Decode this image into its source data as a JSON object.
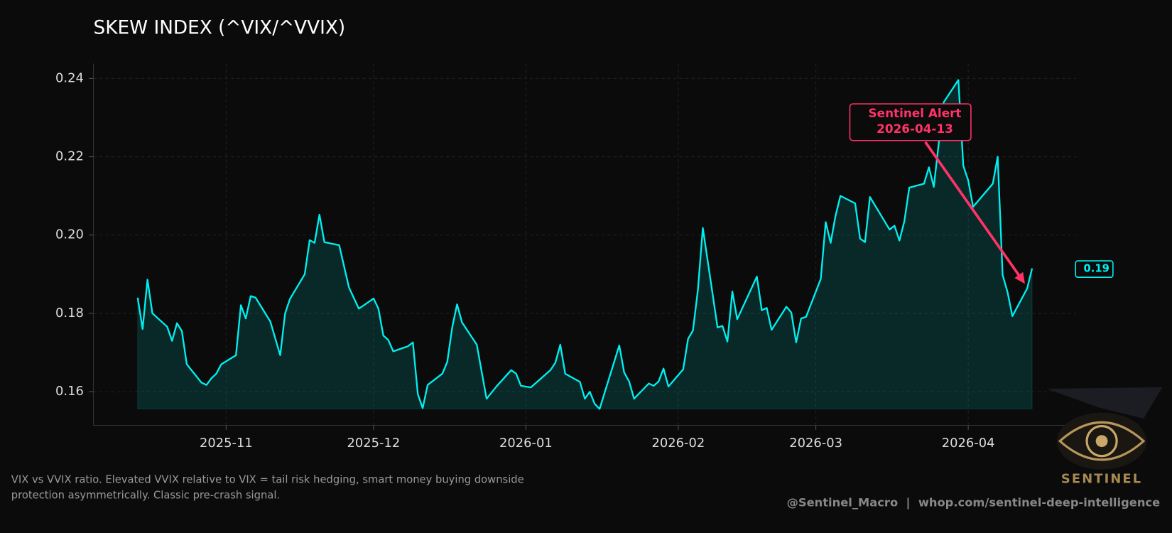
{
  "chart_data": {
    "type": "line",
    "title": "SKEW INDEX (^VIX/^VVIX)",
    "x": [
      "2025-10-14",
      "2025-10-15",
      "2025-10-16",
      "2025-10-17",
      "2025-10-20",
      "2025-10-21",
      "2025-10-22",
      "2025-10-23",
      "2025-10-24",
      "2025-10-27",
      "2025-10-28",
      "2025-10-29",
      "2025-10-30",
      "2025-10-31",
      "2025-11-03",
      "2025-11-04",
      "2025-11-05",
      "2025-11-06",
      "2025-11-07",
      "2025-11-10",
      "2025-11-12",
      "2025-11-13",
      "2025-11-14",
      "2025-11-17",
      "2025-11-18",
      "2025-11-19",
      "2025-11-20",
      "2025-11-21",
      "2025-11-24",
      "2025-11-26",
      "2025-11-28",
      "2025-12-01",
      "2025-12-02",
      "2025-12-03",
      "2025-12-04",
      "2025-12-05",
      "2025-12-08",
      "2025-12-09",
      "2025-12-10",
      "2025-12-11",
      "2025-12-12",
      "2025-12-15",
      "2025-12-16",
      "2025-12-17",
      "2025-12-18",
      "2025-12-19",
      "2025-12-22",
      "2025-12-23",
      "2025-12-24",
      "2025-12-26",
      "2025-12-29",
      "2025-12-30",
      "2025-12-31",
      "2026-01-02",
      "2026-01-06",
      "2026-01-07",
      "2026-01-08",
      "2026-01-09",
      "2026-01-12",
      "2026-01-13",
      "2026-01-14",
      "2026-01-15",
      "2026-01-16",
      "2026-01-20",
      "2026-01-21",
      "2026-01-22",
      "2026-01-23",
      "2026-01-26",
      "2026-01-27",
      "2026-01-28",
      "2026-01-29",
      "2026-01-30",
      "2026-02-02",
      "2026-02-03",
      "2026-02-04",
      "2026-02-05",
      "2026-02-06",
      "2026-02-09",
      "2026-02-10",
      "2026-02-11",
      "2026-02-12",
      "2026-02-13",
      "2026-02-17",
      "2026-02-18",
      "2026-02-19",
      "2026-02-20",
      "2026-02-23",
      "2026-02-24",
      "2026-02-25",
      "2026-02-26",
      "2026-02-27",
      "2026-03-02",
      "2026-03-03",
      "2026-03-04",
      "2026-03-05",
      "2026-03-06",
      "2026-03-09",
      "2026-03-10",
      "2026-03-11",
      "2026-03-12",
      "2026-03-16",
      "2026-03-17",
      "2026-03-18",
      "2026-03-19",
      "2026-03-20",
      "2026-03-23",
      "2026-03-24",
      "2026-03-25",
      "2026-03-26",
      "2026-03-27",
      "2026-03-30",
      "2026-03-31",
      "2026-04-01",
      "2026-04-02",
      "2026-04-06",
      "2026-04-07",
      "2026-04-08",
      "2026-04-09",
      "2026-04-10",
      "2026-04-13",
      "2026-04-14"
    ],
    "series": [
      {
        "name": "Skew",
        "color": "#00f0f0",
        "values": [
          0.184,
          0.176,
          0.1886,
          0.18,
          0.1766,
          0.173,
          0.1775,
          0.1755,
          0.167,
          0.1623,
          0.1617,
          0.1634,
          0.1646,
          0.167,
          0.1693,
          0.1821,
          0.1787,
          0.1844,
          0.184,
          0.1779,
          0.1693,
          0.18,
          0.1837,
          0.19,
          0.1987,
          0.198,
          0.2052,
          0.1982,
          0.1974,
          0.1866,
          0.1812,
          0.1838,
          0.1812,
          0.1743,
          0.1732,
          0.1703,
          0.1716,
          0.1726,
          0.1594,
          0.1558,
          0.1617,
          0.1646,
          0.1676,
          0.1764,
          0.1823,
          0.1777,
          0.172,
          0.1651,
          0.1582,
          0.1613,
          0.1655,
          0.1646,
          0.1615,
          0.1611,
          0.1655,
          0.1674,
          0.172,
          0.1646,
          0.1625,
          0.1582,
          0.16,
          0.1569,
          0.1556,
          0.1718,
          0.1649,
          0.1626,
          0.1582,
          0.1621,
          0.1615,
          0.1626,
          0.1659,
          0.1613,
          0.1657,
          0.1735,
          0.1756,
          0.186,
          0.2018,
          0.1764,
          0.1768,
          0.1728,
          0.1856,
          0.1785,
          0.1894,
          0.1808,
          0.1814,
          0.1758,
          0.1817,
          0.1802,
          0.1726,
          0.1787,
          0.1791,
          0.1888,
          0.2033,
          0.198,
          0.2049,
          0.21,
          0.2081,
          0.1991,
          0.1982,
          0.2097,
          0.2014,
          0.2024,
          0.1986,
          0.2035,
          0.2121,
          0.2131,
          0.2173,
          0.2123,
          0.2234,
          0.2339,
          0.2396,
          0.2177,
          0.214,
          0.2072,
          0.2131,
          0.22,
          0.1898,
          0.1854,
          0.1793,
          0.1864,
          0.1915
        ]
      }
    ],
    "xlim": [
      "2025-10-05",
      "2026-04-23"
    ],
    "xticks": [
      {
        "value": "2025-11-01",
        "label": "2025-11"
      },
      {
        "value": "2025-12-01",
        "label": "2025-12"
      },
      {
        "value": "2026-01-01",
        "label": "2026-01"
      },
      {
        "value": "2026-02-01",
        "label": "2026-02"
      },
      {
        "value": "2026-03-01",
        "label": "2026-03"
      },
      {
        "value": "2026-04-01",
        "label": "2026-04"
      }
    ],
    "ylim": [
      0.1514,
      0.2438
    ],
    "yticks": [
      0.16,
      0.18,
      {
        "value": 0.2,
        "label": "0.20"
      },
      0.22,
      0.24
    ],
    "grid": true,
    "last_value_label": "0.19",
    "annotation": {
      "lines": [
        "Sentinel Alert",
        "2026-04-13"
      ],
      "x": "2026-04-13",
      "color": "#ff3366"
    },
    "footnote": [
      "VIX vs VVIX ratio. Elevated VVIX relative to VIX = tail risk hedging, smart money buying downside",
      "protection asymmetrically. Classic pre-crash signal."
    ],
    "credit": "@Sentinel_Macro  |  whop.com/sentinel-deep-intelligence",
    "logo": "SENTINEL"
  }
}
